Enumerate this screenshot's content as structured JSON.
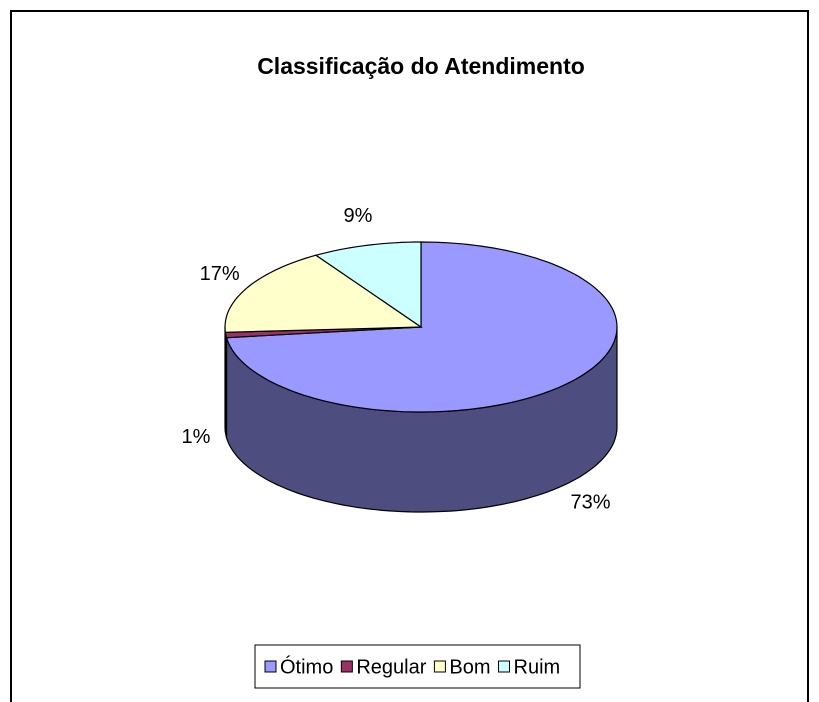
{
  "chart_data": {
    "type": "pie",
    "title": "Classificação do Atendimento",
    "categories": [
      "Ótimo",
      "Regular",
      "Bom",
      "Ruim"
    ],
    "values": [
      73,
      1,
      17,
      9
    ],
    "value_labels": [
      "73%",
      "1%",
      "17%",
      "9%"
    ],
    "colors": [
      "#9999ff",
      "#993366",
      "#ffffcc",
      "#ccffff"
    ],
    "legend": "bottom"
  }
}
